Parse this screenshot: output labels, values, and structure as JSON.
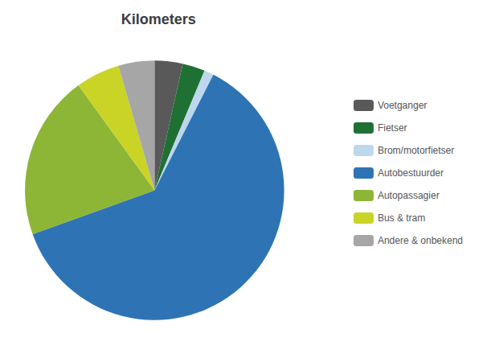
{
  "chart_data": {
    "type": "pie",
    "title": "Kilometers",
    "categories": [
      "Voetganger",
      "Fietser",
      "Brom/motorfietser",
      "Autobestuurder",
      "Autopassagier",
      "Bus & tram",
      "Andere & onbekend"
    ],
    "values": [
      3.5,
      2.8,
      1.2,
      62.0,
      20.5,
      5.5,
      4.5
    ],
    "colors": [
      "#595959",
      "#1F7133",
      "#BDD7EE",
      "#2E74B5",
      "#8DB636",
      "#C9D427",
      "#A6A6A6"
    ],
    "legend": "right"
  }
}
